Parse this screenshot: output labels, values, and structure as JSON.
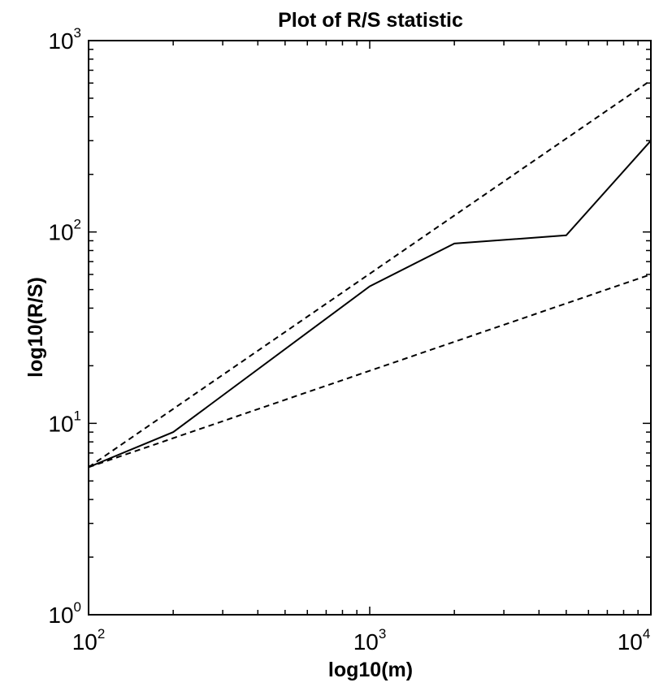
{
  "chart_data": {
    "type": "line",
    "title": "Plot of R/S statistic",
    "xlabel": "log10(m)",
    "ylabel": "log10(R/S)",
    "x_scale": "log",
    "y_scale": "log",
    "xlim": [
      100,
      10000
    ],
    "ylim": [
      1,
      1000
    ],
    "grid": false,
    "x_ticks": [
      {
        "value": 100,
        "base": "10",
        "exp": "2"
      },
      {
        "value": 1000,
        "base": "10",
        "exp": "3"
      },
      {
        "value": 10000,
        "base": "10",
        "exp": "4"
      }
    ],
    "y_ticks": [
      {
        "value": 1,
        "base": "10",
        "exp": "0"
      },
      {
        "value": 10,
        "base": "10",
        "exp": "1"
      },
      {
        "value": 100,
        "base": "10",
        "exp": "2"
      },
      {
        "value": 1000,
        "base": "10",
        "exp": "3"
      }
    ],
    "series": [
      {
        "style": "solid",
        "color": "#000000",
        "x": [
          100,
          200,
          1000,
          2000,
          5000,
          10000
        ],
        "y": [
          5.9,
          9.0,
          52,
          87,
          96,
          300
        ]
      },
      {
        "style": "dashed",
        "color": "#000000",
        "x": [
          100,
          10000
        ],
        "y": [
          5.9,
          620
        ]
      },
      {
        "style": "dashed",
        "color": "#000000",
        "x": [
          100,
          10000
        ],
        "y": [
          5.9,
          60
        ]
      }
    ]
  }
}
